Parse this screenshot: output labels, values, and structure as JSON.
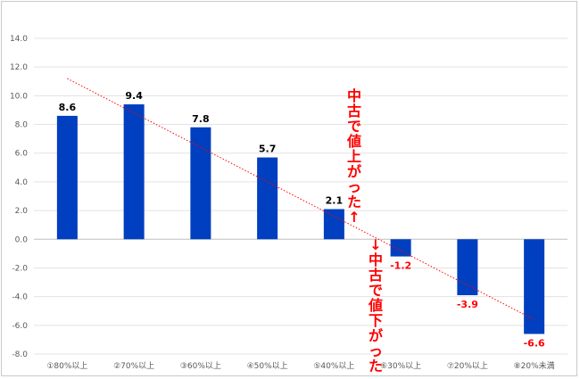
{
  "chart_data": {
    "type": "bar",
    "categories": [
      "①80%以上",
      "②70%以上",
      "③60%以上",
      "④50%以上",
      "⑤40%以上",
      "⑥30%以上",
      "⑦20%以上",
      "⑧20%未満"
    ],
    "values": [
      8.6,
      9.4,
      7.8,
      5.7,
      2.1,
      -1.2,
      -3.9,
      -6.6
    ],
    "data_labels": [
      "8.6",
      "9.4",
      "7.8",
      "5.7",
      "2.1",
      "-1.2",
      "-3.9",
      "-6.6"
    ],
    "y_ticks": [
      "14.0",
      "12.0",
      "10.0",
      "8.0",
      "6.0",
      "4.0",
      "2.0",
      "0.0",
      "-2.0",
      "-4.0",
      "-6.0",
      "-8.0"
    ],
    "ylim": [
      -8,
      14
    ],
    "grid": true,
    "trendline": {
      "style": "dotted",
      "color": "#ff0000",
      "from": [
        0,
        11.2
      ],
      "to": [
        7,
        -5.6
      ]
    },
    "bar_color": "#003fbf",
    "positive_label_color": "#000000",
    "negative_label_color": "#ff0000",
    "title": "",
    "xlabel": "",
    "ylabel": ""
  },
  "annotations": {
    "up_text": "中古で値上がった↑",
    "down_text": "↓中古で値下がった",
    "color": "#ff0000"
  }
}
